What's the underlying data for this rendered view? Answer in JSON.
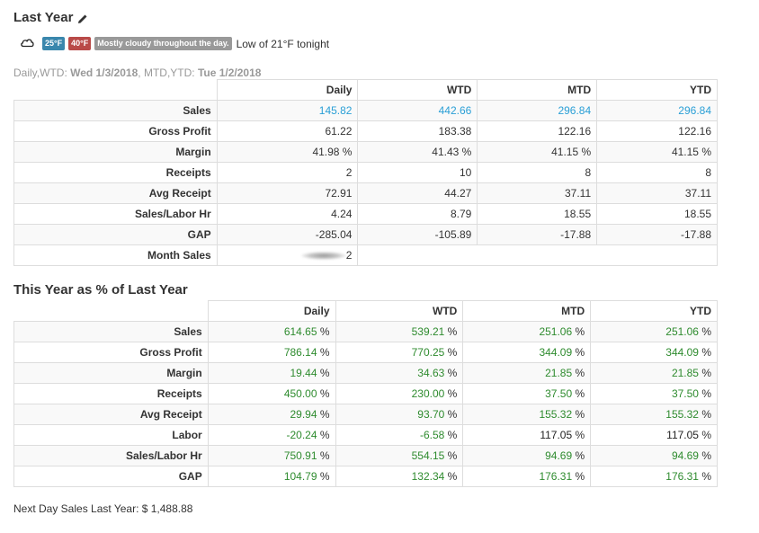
{
  "header": {
    "title": "Last Year"
  },
  "weather": {
    "low": "25°F",
    "high": "40°F",
    "description": "Mostly cloudy throughout the day.",
    "tonight": "Low of 21°F tonight"
  },
  "dates": {
    "prefix1": "Daily,WTD: ",
    "date1": "Wed 1/3/2018",
    "prefix2": ", MTD,YTD: ",
    "date2": "Tue 1/2/2018"
  },
  "last_year_table": {
    "columns": [
      "Daily",
      "WTD",
      "MTD",
      "YTD"
    ],
    "rows": [
      {
        "label": "Sales",
        "values": [
          "145.82",
          "442.66",
          "296.84",
          "296.84"
        ]
      },
      {
        "label": "Gross Profit",
        "values": [
          "61.22",
          "183.38",
          "122.16",
          "122.16"
        ]
      },
      {
        "label": "Margin",
        "values": [
          "41.98 %",
          "41.43 %",
          "41.15 %",
          "41.15 %"
        ]
      },
      {
        "label": "Receipts",
        "values": [
          "2",
          "10",
          "8",
          "8"
        ]
      },
      {
        "label": "Avg Receipt",
        "values": [
          "72.91",
          "44.27",
          "37.11",
          "37.11"
        ]
      },
      {
        "label": "Sales/Labor Hr",
        "values": [
          "4.24",
          "8.79",
          "18.55",
          "18.55"
        ]
      },
      {
        "label": "GAP",
        "values": [
          "-285.04",
          "-105.89",
          "-17.88",
          "-17.88"
        ]
      }
    ],
    "month_sales_label": "Month Sales",
    "month_sales_visible": "2"
  },
  "this_year_section": {
    "title": "This Year as % of Last Year",
    "columns": [
      "Daily",
      "WTD",
      "MTD",
      "YTD"
    ],
    "pct": "%",
    "rows": [
      {
        "label": "Sales",
        "values": [
          "614.65",
          "539.21",
          "251.06",
          "251.06"
        ]
      },
      {
        "label": "Gross Profit",
        "values": [
          "786.14",
          "770.25",
          "344.09",
          "344.09"
        ]
      },
      {
        "label": "Margin",
        "values": [
          "19.44",
          "34.63",
          "21.85",
          "21.85"
        ]
      },
      {
        "label": "Receipts",
        "values": [
          "450.00",
          "230.00",
          "37.50",
          "37.50"
        ]
      },
      {
        "label": "Avg Receipt",
        "values": [
          "29.94",
          "93.70",
          "155.32",
          "155.32"
        ]
      },
      {
        "label": "Labor",
        "values": [
          "-20.24",
          "-6.58",
          "117.05",
          "117.05"
        ]
      },
      {
        "label": "Sales/Labor Hr",
        "values": [
          "750.91",
          "554.15",
          "94.69",
          "94.69"
        ]
      },
      {
        "label": "GAP",
        "values": [
          "104.79",
          "132.34",
          "176.31",
          "176.31"
        ]
      }
    ]
  },
  "footer": {
    "next_day_label": "Next Day Sales Last Year: $ 1,488.88"
  },
  "colors": {
    "link_blue": "#2a9fd6",
    "positive_green": "#2e8b2e",
    "badge_low": "#3a87ad",
    "badge_high": "#b94a48",
    "badge_desc": "#999999"
  }
}
